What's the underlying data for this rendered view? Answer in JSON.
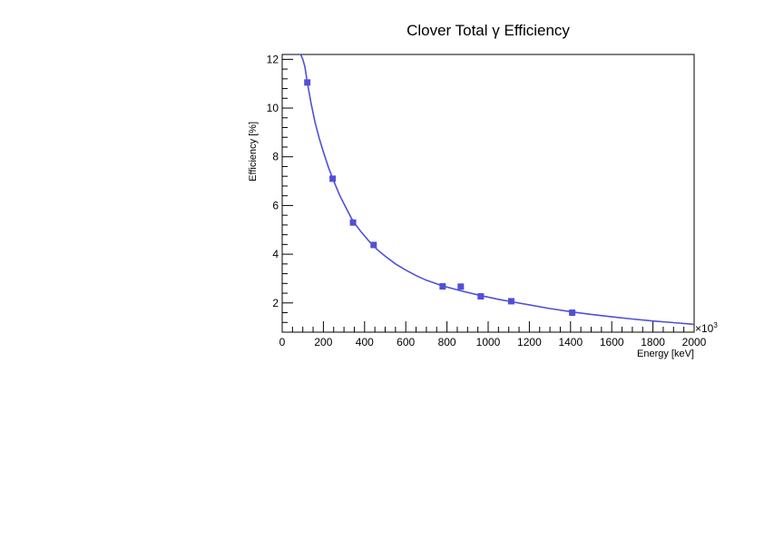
{
  "chart_data": {
    "type": "scatter",
    "title": "Clover Total γ Efficiency",
    "xlabel": "Energy [keV]",
    "ylabel": "Efficiency [%]",
    "x_multiplier_label": "×10",
    "x_multiplier_exp": "3",
    "xlim": [
      0,
      2000
    ],
    "ylim": [
      0.8,
      12.2
    ],
    "x_ticks": [
      0,
      200,
      400,
      600,
      800,
      1000,
      1200,
      1400,
      1600,
      1800,
      2000
    ],
    "y_ticks": [
      2,
      4,
      6,
      8,
      10,
      12
    ],
    "grid": false,
    "legend": "none",
    "color": "#5050d8",
    "points": [
      {
        "x": 122,
        "y": 11.05
      },
      {
        "x": 245,
        "y": 7.1
      },
      {
        "x": 344,
        "y": 5.3
      },
      {
        "x": 444,
        "y": 4.38
      },
      {
        "x": 779,
        "y": 2.68
      },
      {
        "x": 867,
        "y": 2.67
      },
      {
        "x": 964,
        "y": 2.27
      },
      {
        "x": 1112,
        "y": 2.07
      },
      {
        "x": 1408,
        "y": 1.6
      }
    ],
    "fit_curve": [
      {
        "x": 90,
        "y": 12.2
      },
      {
        "x": 100,
        "y": 12.0
      },
      {
        "x": 110,
        "y": 11.7
      },
      {
        "x": 122,
        "y": 11.05
      },
      {
        "x": 140,
        "y": 10.2
      },
      {
        "x": 160,
        "y": 9.4
      },
      {
        "x": 180,
        "y": 8.75
      },
      {
        "x": 200,
        "y": 8.2
      },
      {
        "x": 225,
        "y": 7.55
      },
      {
        "x": 250,
        "y": 7.0
      },
      {
        "x": 280,
        "y": 6.4
      },
      {
        "x": 310,
        "y": 5.9
      },
      {
        "x": 344,
        "y": 5.35
      },
      {
        "x": 380,
        "y": 4.95
      },
      {
        "x": 420,
        "y": 4.55
      },
      {
        "x": 460,
        "y": 4.2
      },
      {
        "x": 500,
        "y": 3.92
      },
      {
        "x": 550,
        "y": 3.6
      },
      {
        "x": 600,
        "y": 3.35
      },
      {
        "x": 650,
        "y": 3.12
      },
      {
        "x": 700,
        "y": 2.93
      },
      {
        "x": 779,
        "y": 2.7
      },
      {
        "x": 867,
        "y": 2.5
      },
      {
        "x": 964,
        "y": 2.3
      },
      {
        "x": 1050,
        "y": 2.15
      },
      {
        "x": 1112,
        "y": 2.05
      },
      {
        "x": 1200,
        "y": 1.92
      },
      {
        "x": 1300,
        "y": 1.77
      },
      {
        "x": 1408,
        "y": 1.63
      },
      {
        "x": 1500,
        "y": 1.53
      },
      {
        "x": 1600,
        "y": 1.43
      },
      {
        "x": 1700,
        "y": 1.34
      },
      {
        "x": 1800,
        "y": 1.26
      },
      {
        "x": 1900,
        "y": 1.19
      },
      {
        "x": 2000,
        "y": 1.12
      }
    ]
  }
}
